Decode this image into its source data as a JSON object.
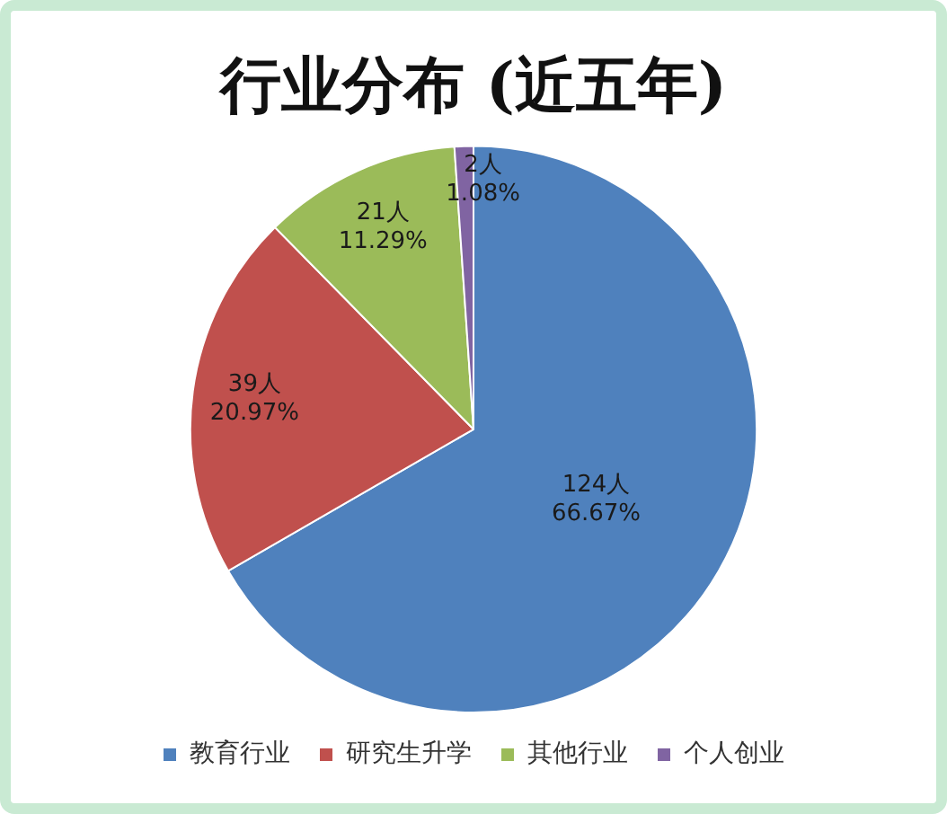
{
  "chart_data": {
    "type": "pie",
    "title": "行业分布 (近五年)",
    "categories": [
      "教育行业",
      "研究生升学",
      "其他行业",
      "个人创业"
    ],
    "values": [
      124,
      39,
      21,
      2
    ],
    "colors": [
      "#4f81bd",
      "#c0504d",
      "#9bbb59",
      "#8064a2"
    ],
    "value_labels": [
      "124人\n66.67%",
      "39人\n20.97%",
      "21人\n11.29%",
      "2人\n1.08%"
    ],
    "legend": "bottom"
  }
}
